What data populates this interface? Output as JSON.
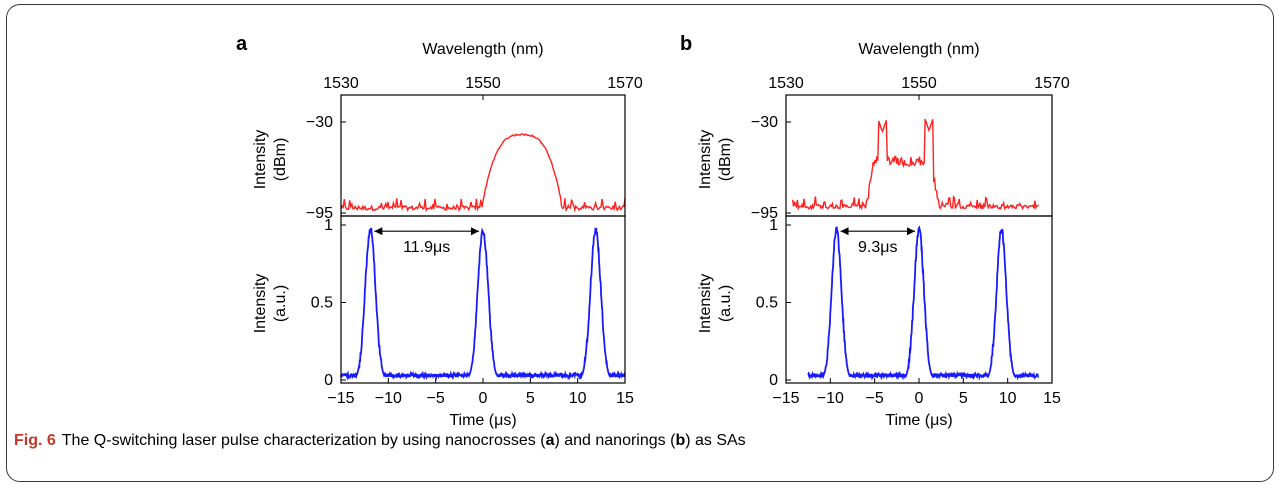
{
  "caption": {
    "fig_number": "Fig. 6",
    "parts": [
      "The Q-switching laser pulse characterization by using nanocrosses (",
      "a",
      ") and nanorings (",
      "b",
      ") as SAs"
    ]
  },
  "colors": {
    "spectrum": "#ff2020",
    "pulse": "#1a1aff"
  },
  "chart_data": [
    {
      "panel": "a",
      "type": "line",
      "spectrum": {
        "xlabel": "Wavelength (nm)",
        "ylabel": [
          "Intensity",
          "(dBm)"
        ],
        "xlim": [
          1530,
          1570
        ],
        "ylim": [
          -95,
          -30
        ],
        "xticks": [
          1530,
          1550,
          1570
        ],
        "yticks": [
          -30,
          -95
        ],
        "ytick_labels": [
          "−30",
          "−95"
        ],
        "axis_position": "top",
        "peak_center": 1555.5,
        "peak_level": -39,
        "peak_edges": [
          1549.5,
          1561
        ],
        "noise_floor": -93,
        "noise_range": [
          1530,
          1570
        ]
      },
      "pulses": {
        "xlabel": "Time (μs)",
        "ylabel": [
          "Intensity",
          "(a.u.)"
        ],
        "xlim": [
          -15,
          15
        ],
        "ylim": [
          0,
          1
        ],
        "xticks": [
          -15,
          -10,
          -5,
          0,
          5,
          10,
          15
        ],
        "xtick_labels": [
          "−15",
          "−10",
          "−5",
          "0",
          "5",
          "10",
          "15"
        ],
        "yticks": [
          0,
          0.5,
          1
        ],
        "peaks": [
          -11.9,
          0,
          11.9
        ],
        "peak_height": 0.97,
        "baseline": 0.03,
        "data_range": [
          -15,
          15
        ],
        "annotation": "11.9μs",
        "arrow": [
          -11.9,
          0
        ]
      }
    },
    {
      "panel": "b",
      "type": "line",
      "spectrum": {
        "xlabel": "Wavelength (nm)",
        "ylabel": [
          "Intensity",
          "(dBm)"
        ],
        "xlim": [
          1530,
          1570
        ],
        "ylim": [
          -95,
          -30
        ],
        "xticks": [
          1530,
          1550,
          1570
        ],
        "yticks": [
          -30,
          -95
        ],
        "ytick_labels": [
          "−30",
          "−95"
        ],
        "axis_position": "top",
        "plateau": [
          1542,
          1553
        ],
        "plateau_level": -58,
        "spikes": [
          [
            1544.5,
            -37
          ],
          [
            1551.5,
            -36
          ]
        ],
        "noise_floor": -92,
        "noise_range": [
          1531,
          1568
        ]
      },
      "pulses": {
        "xlabel": "Time (μs)",
        "ylabel": [
          "Intensity",
          "(a.u.)"
        ],
        "xlim": [
          -15,
          15
        ],
        "ylim": [
          0,
          1
        ],
        "xticks": [
          -15,
          -10,
          -5,
          0,
          5,
          10,
          15
        ],
        "xtick_labels": [
          "−15",
          "−10",
          "−5",
          "0",
          "5",
          "10",
          "15"
        ],
        "yticks": [
          0,
          0.5,
          1
        ],
        "peaks": [
          -9.3,
          0,
          9.3
        ],
        "peak_height": 0.97,
        "baseline": 0.03,
        "data_range": [
          -12.5,
          13.5
        ],
        "annotation": "9.3μs",
        "arrow": [
          -9.3,
          0
        ]
      }
    }
  ]
}
